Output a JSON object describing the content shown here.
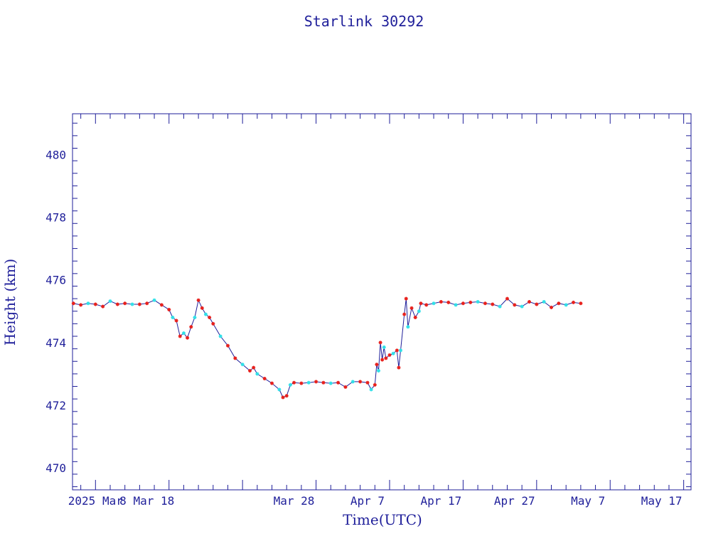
{
  "chart_data": {
    "type": "line",
    "title": "Starlink 30292",
    "xlabel": "Time(UTC)",
    "ylabel": "Height (km)",
    "x_axis": {
      "type": "date",
      "range": [
        "2025-02-25T21:00",
        "2025-05-21T00:00"
      ],
      "tick_labels": [
        {
          "date": "2025-03-01",
          "label": "2025 Mar"
        },
        {
          "date": "2025-03-08",
          "label": "8 Mar 18"
        },
        {
          "date": "2025-03-28",
          "label": "Mar 28"
        },
        {
          "date": "2025-04-07",
          "label": "Apr 7"
        },
        {
          "date": "2025-04-17",
          "label": "Apr 17"
        },
        {
          "date": "2025-04-27",
          "label": "Apr 27"
        },
        {
          "date": "2025-05-07",
          "label": "May 7"
        },
        {
          "date": "2025-05-17",
          "label": "May 17"
        }
      ]
    },
    "y_axis": {
      "range": [
        469.3,
        481.3
      ],
      "ticks": [
        470,
        472,
        474,
        476,
        478,
        480
      ]
    },
    "grid": false,
    "colors": {
      "axis": "#1f1f9a",
      "line": "#1f1f9a",
      "point_red": "#e8201c",
      "point_cyan": "#30e0e8"
    },
    "series": [
      {
        "marker_colors": [
          "red",
          "cyan"
        ],
        "points": [
          [
            "2025-02-26",
            475.25
          ],
          [
            "2025-02-27",
            475.2
          ],
          [
            "2025-02-28",
            475.25
          ],
          [
            "2025-03-01",
            475.22
          ],
          [
            "2025-03-02",
            475.15
          ],
          [
            "2025-03-03",
            475.32
          ],
          [
            "2025-03-04",
            475.22
          ],
          [
            "2025-03-05",
            475.25
          ],
          [
            "2025-03-06",
            475.22
          ],
          [
            "2025-03-07",
            475.22
          ],
          [
            "2025-03-08",
            475.25
          ],
          [
            "2025-03-09",
            475.35
          ],
          [
            "2025-03-10",
            475.2
          ],
          [
            "2025-03-11",
            475.05
          ],
          [
            "2025-03-11T12:00",
            474.8
          ],
          [
            "2025-03-12",
            474.7
          ],
          [
            "2025-03-12T12:00",
            474.2
          ],
          [
            "2025-03-13",
            474.3
          ],
          [
            "2025-03-13T12:00",
            474.15
          ],
          [
            "2025-03-14",
            474.5
          ],
          [
            "2025-03-14T12:00",
            474.8
          ],
          [
            "2025-03-15",
            475.35
          ],
          [
            "2025-03-15T12:00",
            475.1
          ],
          [
            "2025-03-16",
            474.9
          ],
          [
            "2025-03-16T12:00",
            474.8
          ],
          [
            "2025-03-17",
            474.6
          ],
          [
            "2025-03-18",
            474.2
          ],
          [
            "2025-03-19",
            473.9
          ],
          [
            "2025-03-20",
            473.5
          ],
          [
            "2025-03-21",
            473.3
          ],
          [
            "2025-03-22",
            473.1
          ],
          [
            "2025-03-22T12:00",
            473.2
          ],
          [
            "2025-03-23",
            473.0
          ],
          [
            "2025-03-24",
            472.85
          ],
          [
            "2025-03-25",
            472.7
          ],
          [
            "2025-03-26",
            472.5
          ],
          [
            "2025-03-26T12:00",
            472.25
          ],
          [
            "2025-03-27",
            472.3
          ],
          [
            "2025-03-27T12:00",
            472.65
          ],
          [
            "2025-03-28",
            472.72
          ],
          [
            "2025-03-29",
            472.7
          ],
          [
            "2025-03-30",
            472.72
          ],
          [
            "2025-03-31",
            472.75
          ],
          [
            "2025-04-01",
            472.72
          ],
          [
            "2025-04-02",
            472.7
          ],
          [
            "2025-04-03",
            472.72
          ],
          [
            "2025-04-04",
            472.58
          ],
          [
            "2025-04-05",
            472.75
          ],
          [
            "2025-04-06",
            472.75
          ],
          [
            "2025-04-07",
            472.72
          ],
          [
            "2025-04-07T12:00",
            472.5
          ],
          [
            "2025-04-08",
            472.65
          ],
          [
            "2025-04-08T06:00",
            473.3
          ],
          [
            "2025-04-08T12:00",
            473.1
          ],
          [
            "2025-04-08T18:00",
            474.0
          ],
          [
            "2025-04-09",
            473.45
          ],
          [
            "2025-04-09T06:00",
            473.85
          ],
          [
            "2025-04-09T12:00",
            473.5
          ],
          [
            "2025-04-10",
            473.6
          ],
          [
            "2025-04-10T12:00",
            473.65
          ],
          [
            "2025-04-11",
            473.75
          ],
          [
            "2025-04-11T06:00",
            473.2
          ],
          [
            "2025-04-11T12:00",
            473.75
          ],
          [
            "2025-04-12",
            474.9
          ],
          [
            "2025-04-12T06:00",
            475.4
          ],
          [
            "2025-04-12T12:00",
            474.5
          ],
          [
            "2025-04-13",
            475.1
          ],
          [
            "2025-04-13T12:00",
            474.8
          ],
          [
            "2025-04-14",
            475.0
          ],
          [
            "2025-04-14T06:00",
            475.25
          ],
          [
            "2025-04-15",
            475.2
          ],
          [
            "2025-04-16",
            475.25
          ],
          [
            "2025-04-17",
            475.3
          ],
          [
            "2025-04-18",
            475.28
          ],
          [
            "2025-04-19",
            475.2
          ],
          [
            "2025-04-20",
            475.25
          ],
          [
            "2025-04-21",
            475.28
          ],
          [
            "2025-04-22",
            475.3
          ],
          [
            "2025-04-23",
            475.25
          ],
          [
            "2025-04-24",
            475.22
          ],
          [
            "2025-04-25",
            475.15
          ],
          [
            "2025-04-26",
            475.4
          ],
          [
            "2025-04-27",
            475.2
          ],
          [
            "2025-04-28",
            475.15
          ],
          [
            "2025-04-29",
            475.3
          ],
          [
            "2025-04-30",
            475.22
          ],
          [
            "2025-05-01",
            475.3
          ],
          [
            "2025-05-02",
            475.12
          ],
          [
            "2025-05-03",
            475.25
          ],
          [
            "2025-05-04",
            475.2
          ],
          [
            "2025-05-05",
            475.28
          ],
          [
            "2025-05-06",
            475.25
          ]
        ]
      }
    ]
  }
}
